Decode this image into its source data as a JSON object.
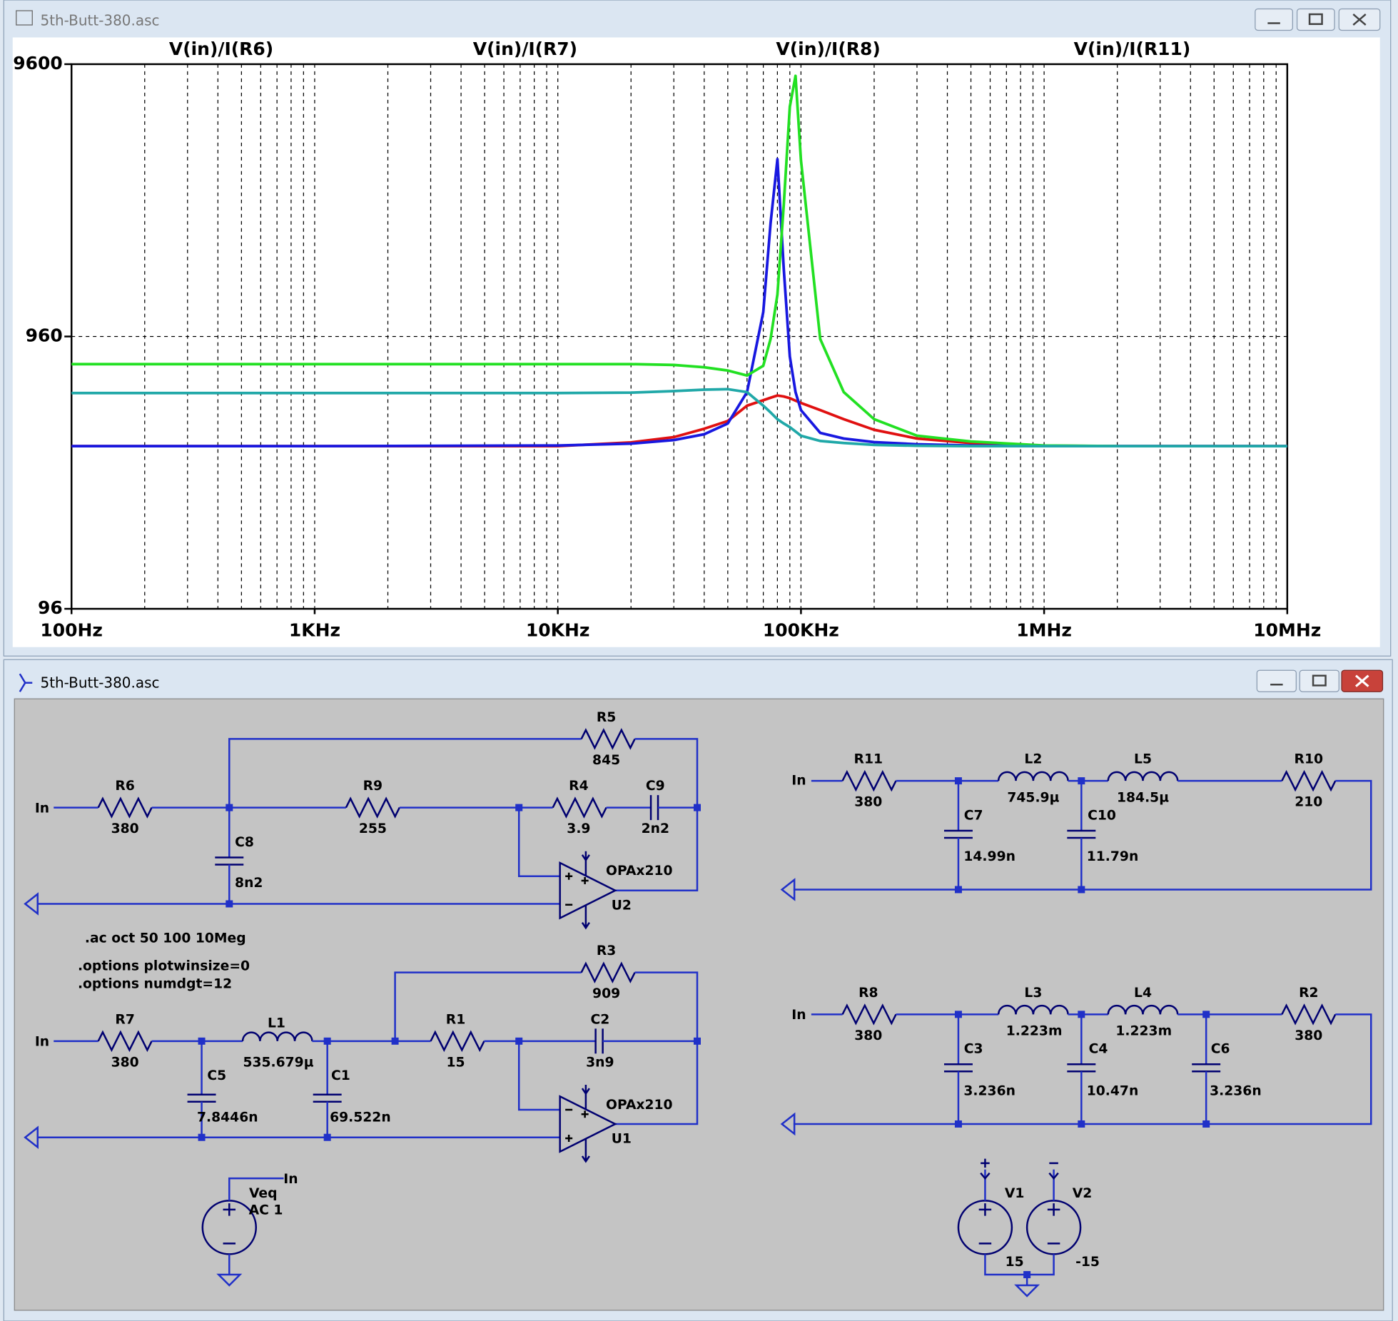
{
  "plot_window": {
    "title": "5th-Butt-380.asc"
  },
  "chart_data": {
    "type": "line",
    "x": [
      100,
      1000,
      10000,
      20000,
      30000,
      40000,
      50000,
      60000,
      70000,
      75000,
      80000,
      85000,
      90000,
      95000,
      100000,
      120000,
      150000,
      200000,
      300000,
      500000,
      1000000,
      2000000,
      10000000
    ],
    "xlim": [
      100,
      10000000
    ],
    "ylim": [
      96,
      9600
    ],
    "x_log": true,
    "y_log": true,
    "grid": true,
    "xticks": [
      {
        "value": 100,
        "label": "100Hz"
      },
      {
        "value": 1000,
        "label": "1KHz"
      },
      {
        "value": 10000,
        "label": "10KHz"
      },
      {
        "value": 100000,
        "label": "100KHz"
      },
      {
        "value": 1000000,
        "label": "1MHz"
      },
      {
        "value": 10000000,
        "label": "10MHz"
      }
    ],
    "yticks": [
      96,
      960,
      9600
    ],
    "series": [
      {
        "name": "V(in)/I(R6)",
        "color": "#e01010",
        "values": [
          380,
          380,
          380,
          392,
          410,
          440,
          470,
          535,
          560,
          572,
          583,
          578,
          570,
          558,
          547,
          515,
          477,
          436,
          405,
          390,
          381,
          380,
          380
        ]
      },
      {
        "name": "V(in)/I(R7)",
        "color": "#1818e0",
        "values": [
          380,
          380,
          382,
          388,
          400,
          420,
          460,
          600,
          1180,
          2500,
          4300,
          1700,
          810,
          600,
          515,
          425,
          405,
          393,
          386,
          382,
          380,
          380,
          380
        ]
      },
      {
        "name": "V(in)/I(R8)",
        "color": "#22e022",
        "values": [
          760,
          760,
          760,
          760,
          755,
          740,
          720,
          690,
          750,
          940,
          1370,
          2920,
          6700,
          8700,
          4260,
          940,
          600,
          477,
          415,
          395,
          382,
          380,
          null
        ]
      },
      {
        "name": "V(in)/I(R11)",
        "color": "#20a8a8",
        "values": [
          595,
          595,
          595,
          597,
          605,
          612,
          615,
          600,
          535,
          505,
          477,
          460,
          446,
          430,
          415,
          397,
          390,
          384,
          381,
          380,
          380,
          380,
          380
        ]
      }
    ]
  },
  "schematic": {
    "title": "5th-Butt-380.asc",
    "directives": [
      ".ac oct 50 100 10Meg",
      ".options plotwinsize=0",
      ".options numdgt=12"
    ],
    "net_labels": [
      "In",
      "In",
      "In",
      "In",
      "In"
    ],
    "components": [
      {
        "ref": "R6",
        "value": "380"
      },
      {
        "ref": "R5",
        "value": "845"
      },
      {
        "ref": "R9",
        "value": "255"
      },
      {
        "ref": "R4",
        "value": "3.9"
      },
      {
        "ref": "C9",
        "value": "2n2"
      },
      {
        "ref": "C8",
        "value": "8n2"
      },
      {
        "ref": "U2",
        "value": "OPAx210"
      },
      {
        "ref": "R7",
        "value": "380"
      },
      {
        "ref": "L1",
        "value": "535.679µ"
      },
      {
        "ref": "C5",
        "value": "7.8446n"
      },
      {
        "ref": "C1",
        "value": "69.522n"
      },
      {
        "ref": "R1",
        "value": "15"
      },
      {
        "ref": "R3",
        "value": "909"
      },
      {
        "ref": "C2",
        "value": "3n9"
      },
      {
        "ref": "U1",
        "value": "OPAx210"
      },
      {
        "ref": "Veq",
        "value": "AC 1"
      },
      {
        "ref": "R11",
        "value": "380"
      },
      {
        "ref": "L2",
        "value": "745.9µ"
      },
      {
        "ref": "L5",
        "value": "184.5µ"
      },
      {
        "ref": "R10",
        "value": "210"
      },
      {
        "ref": "C7",
        "value": "14.99n"
      },
      {
        "ref": "C10",
        "value": "11.79n"
      },
      {
        "ref": "R8",
        "value": "380"
      },
      {
        "ref": "L3",
        "value": "1.223m"
      },
      {
        "ref": "L4",
        "value": "1.223m"
      },
      {
        "ref": "R2",
        "value": "380"
      },
      {
        "ref": "C3",
        "value": "3.236n"
      },
      {
        "ref": "C4",
        "value": "10.47n"
      },
      {
        "ref": "C6",
        "value": "3.236n"
      },
      {
        "ref": "V1",
        "value": "15"
      },
      {
        "ref": "V2",
        "value": "-15"
      }
    ]
  }
}
